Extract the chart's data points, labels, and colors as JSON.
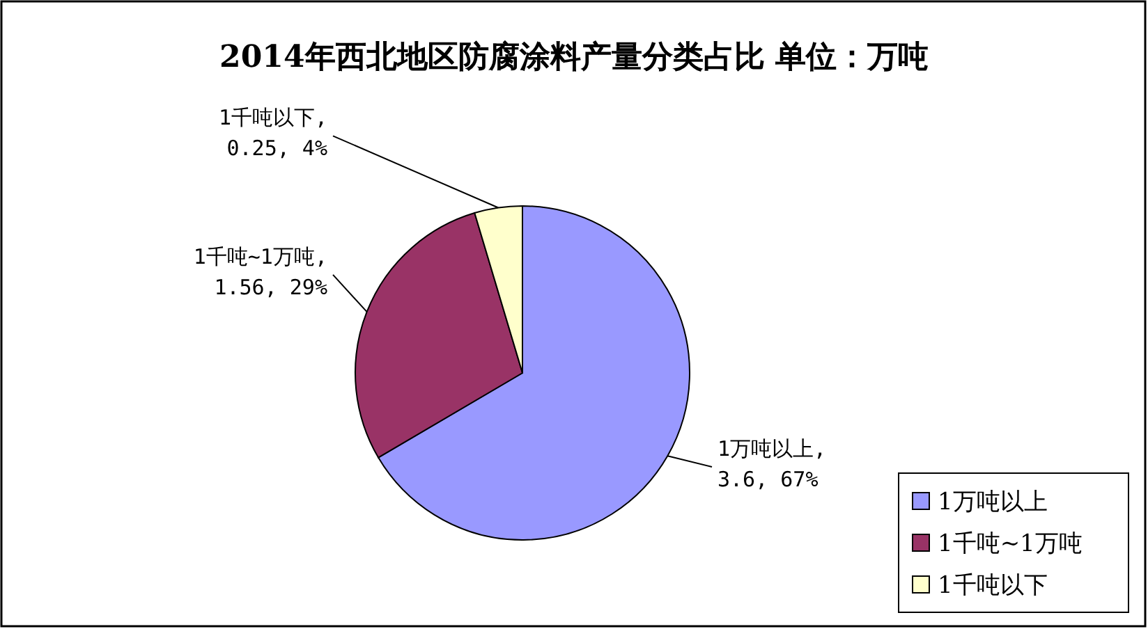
{
  "chart_data": {
    "type": "pie",
    "title": "2014年西北地区防腐涂料产量分类占比 单位：万吨",
    "categories": [
      "1万吨以上",
      "1千吨~1万吨",
      "1千吨以下"
    ],
    "values": [
      3.6,
      1.56,
      0.25
    ],
    "colors": [
      "#9999ff",
      "#993366",
      "#ffffcc"
    ],
    "value_labels": [
      "1万吨以上, 3.6, 67%",
      "1千吨~1万吨, 1.56, 29%",
      "1千吨以下, 0.25, 4%"
    ],
    "legend": "bottom right"
  }
}
